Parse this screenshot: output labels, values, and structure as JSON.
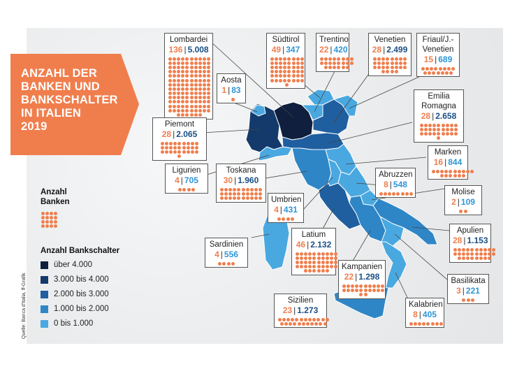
{
  "title": "ANZAHL DER\nBANKEN UND\nBANKSCHALTER\nIN ITALIEN\n2019",
  "legend": {
    "banks_title": "Anzahl\nBanken",
    "branches_title": "Anzahl Bankschalter",
    "items": [
      {
        "label": "über 4.000",
        "color": "#0f1f3d"
      },
      {
        "label": "3.000 bis 4.000",
        "color": "#143a6b"
      },
      {
        "label": "2.000 bis 3.000",
        "color": "#1f5fa0"
      },
      {
        "label": "1.000 bis 2.000",
        "color": "#2f86c6"
      },
      {
        "label": "0 bis 1.000",
        "color": "#4aa8e0"
      }
    ]
  },
  "source": "Quelle: Banca d'Italia, ff-Grafik",
  "colors": {
    "banks": "#f07e4d",
    "branches": "#1a4f86",
    "banner": "#f07e4d"
  },
  "regions": [
    {
      "name": "Lombardei",
      "banks": "136",
      "branches": "5.008"
    },
    {
      "name": "Aosta",
      "banks": "1",
      "branches": "83"
    },
    {
      "name": "Südtirol",
      "banks": "49",
      "branches": "347"
    },
    {
      "name": "Trentino",
      "banks": "22",
      "branches": "420"
    },
    {
      "name": "Venetien",
      "banks": "28",
      "branches": "2.499"
    },
    {
      "name": "Friaul/J.-\nVenetien",
      "banks": "15",
      "branches": "689"
    },
    {
      "name": "Piemont",
      "banks": "28",
      "branches": "2.065"
    },
    {
      "name": "Emilia\nRomagna",
      "banks": "28",
      "branches": "2.658"
    },
    {
      "name": "Marken",
      "banks": "16",
      "branches": "844"
    },
    {
      "name": "Ligurien",
      "banks": "4",
      "branches": "705"
    },
    {
      "name": "Toskana",
      "banks": "30",
      "branches": "1.960"
    },
    {
      "name": "Abruzzen",
      "banks": "8",
      "branches": "548"
    },
    {
      "name": "Molise",
      "banks": "2",
      "branches": "109"
    },
    {
      "name": "Umbrien",
      "banks": "4",
      "branches": "431"
    },
    {
      "name": "Sardinien",
      "banks": "4",
      "branches": "556"
    },
    {
      "name": "Latium",
      "banks": "46",
      "branches": "2.132"
    },
    {
      "name": "Apulien",
      "banks": "28",
      "branches": "1.153"
    },
    {
      "name": "Kampanien",
      "banks": "22",
      "branches": "1.298"
    },
    {
      "name": "Basilikata",
      "banks": "3",
      "branches": "221"
    },
    {
      "name": "Sizilien",
      "banks": "23",
      "branches": "1.273"
    },
    {
      "name": "Kalabrien",
      "banks": "8",
      "branches": "405"
    }
  ]
}
